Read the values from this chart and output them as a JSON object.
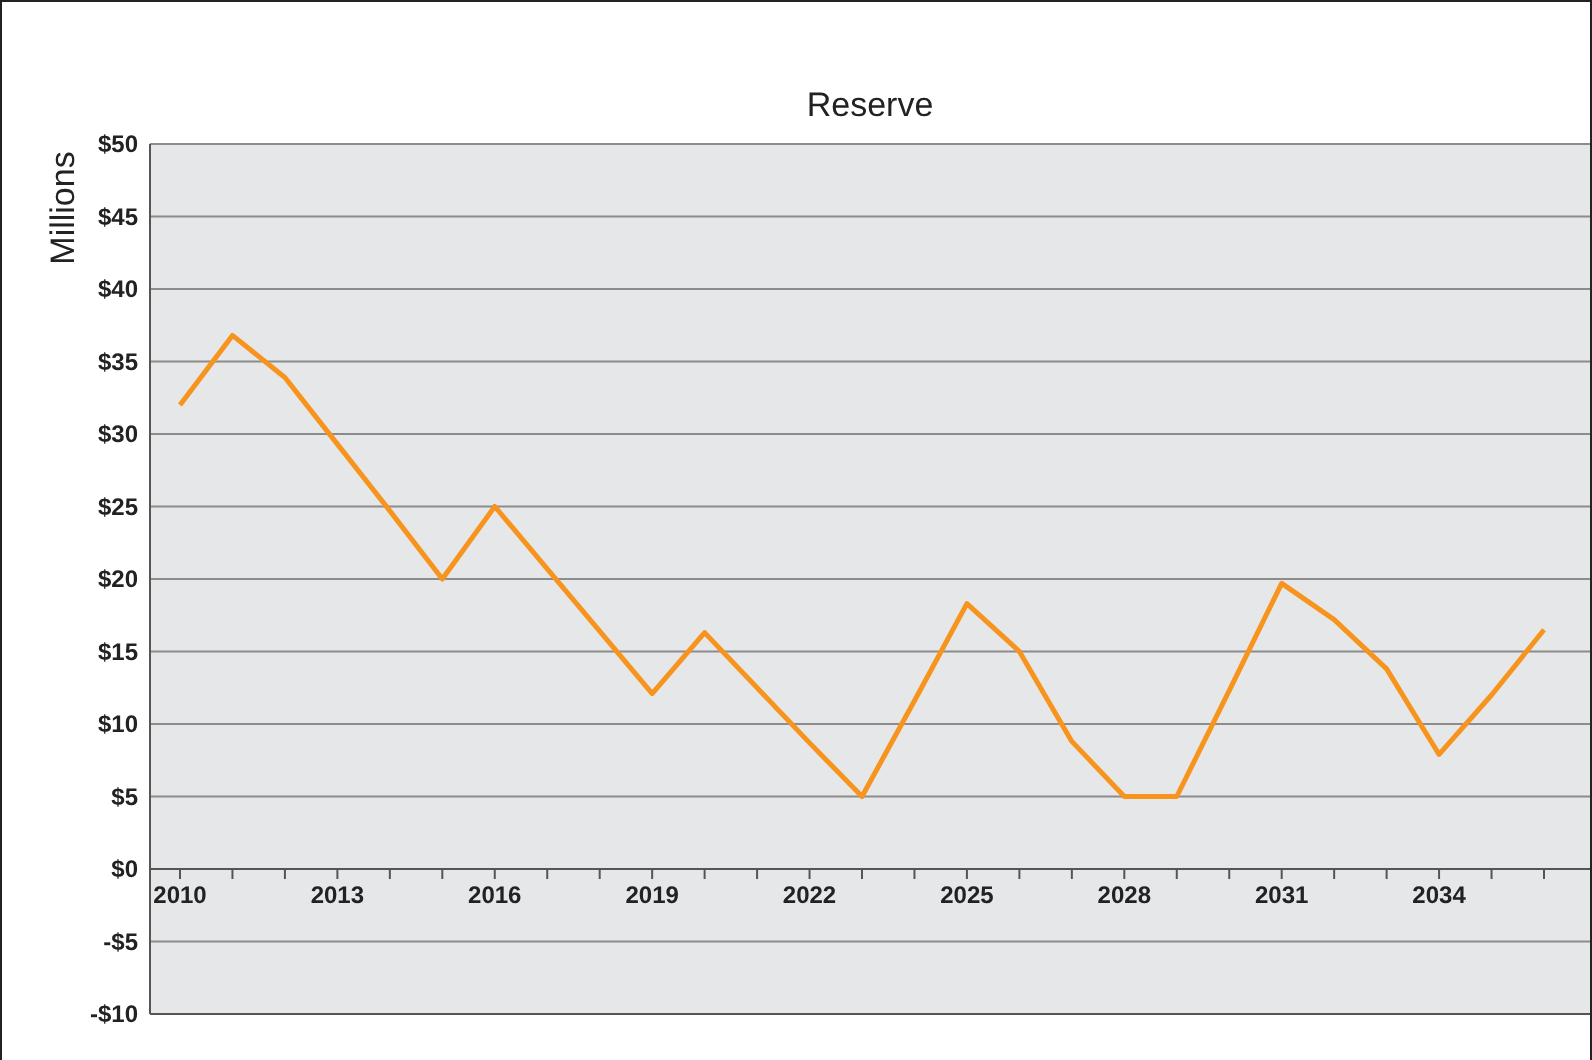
{
  "chart_data": {
    "type": "line",
    "title": "Reserve",
    "ylabel": "Millions",
    "categories": [
      "2010",
      null,
      null,
      "2013",
      null,
      null,
      "2016",
      null,
      null,
      "2019",
      null,
      null,
      "2022",
      null,
      null,
      "2025",
      null,
      null,
      "2028",
      null,
      null,
      "2031",
      null,
      null,
      "2034",
      null,
      null
    ],
    "series": [
      {
        "color": "#f7941d",
        "values": [
          32,
          36.8,
          33.9,
          29.3,
          24.7,
          20,
          25,
          20.7,
          16.4,
          12.1,
          16.3,
          12.5,
          8.7,
          5,
          11.6,
          18.3,
          15,
          8.8,
          5,
          5,
          12.3,
          19.7,
          17.2,
          13.8,
          7.9,
          12,
          16.5
        ]
      }
    ],
    "ylim": [
      -10,
      50
    ],
    "yticks": [
      {
        "value": -10,
        "label": "-$10"
      },
      {
        "value": -5,
        "label": "-$5"
      },
      {
        "value": 0,
        "label": "$0"
      },
      {
        "value": 5,
        "label": "$5"
      },
      {
        "value": 10,
        "label": "$10"
      },
      {
        "value": 15,
        "label": "$15"
      },
      {
        "value": 20,
        "label": "$20"
      },
      {
        "value": 25,
        "label": "$25"
      },
      {
        "value": 30,
        "label": "$30"
      },
      {
        "value": 35,
        "label": "$35"
      },
      {
        "value": 40,
        "label": "$40"
      },
      {
        "value": 45,
        "label": "$45"
      },
      {
        "value": 50,
        "label": "$50"
      }
    ],
    "grid": "y",
    "marker": "none",
    "line_style": "solid"
  }
}
